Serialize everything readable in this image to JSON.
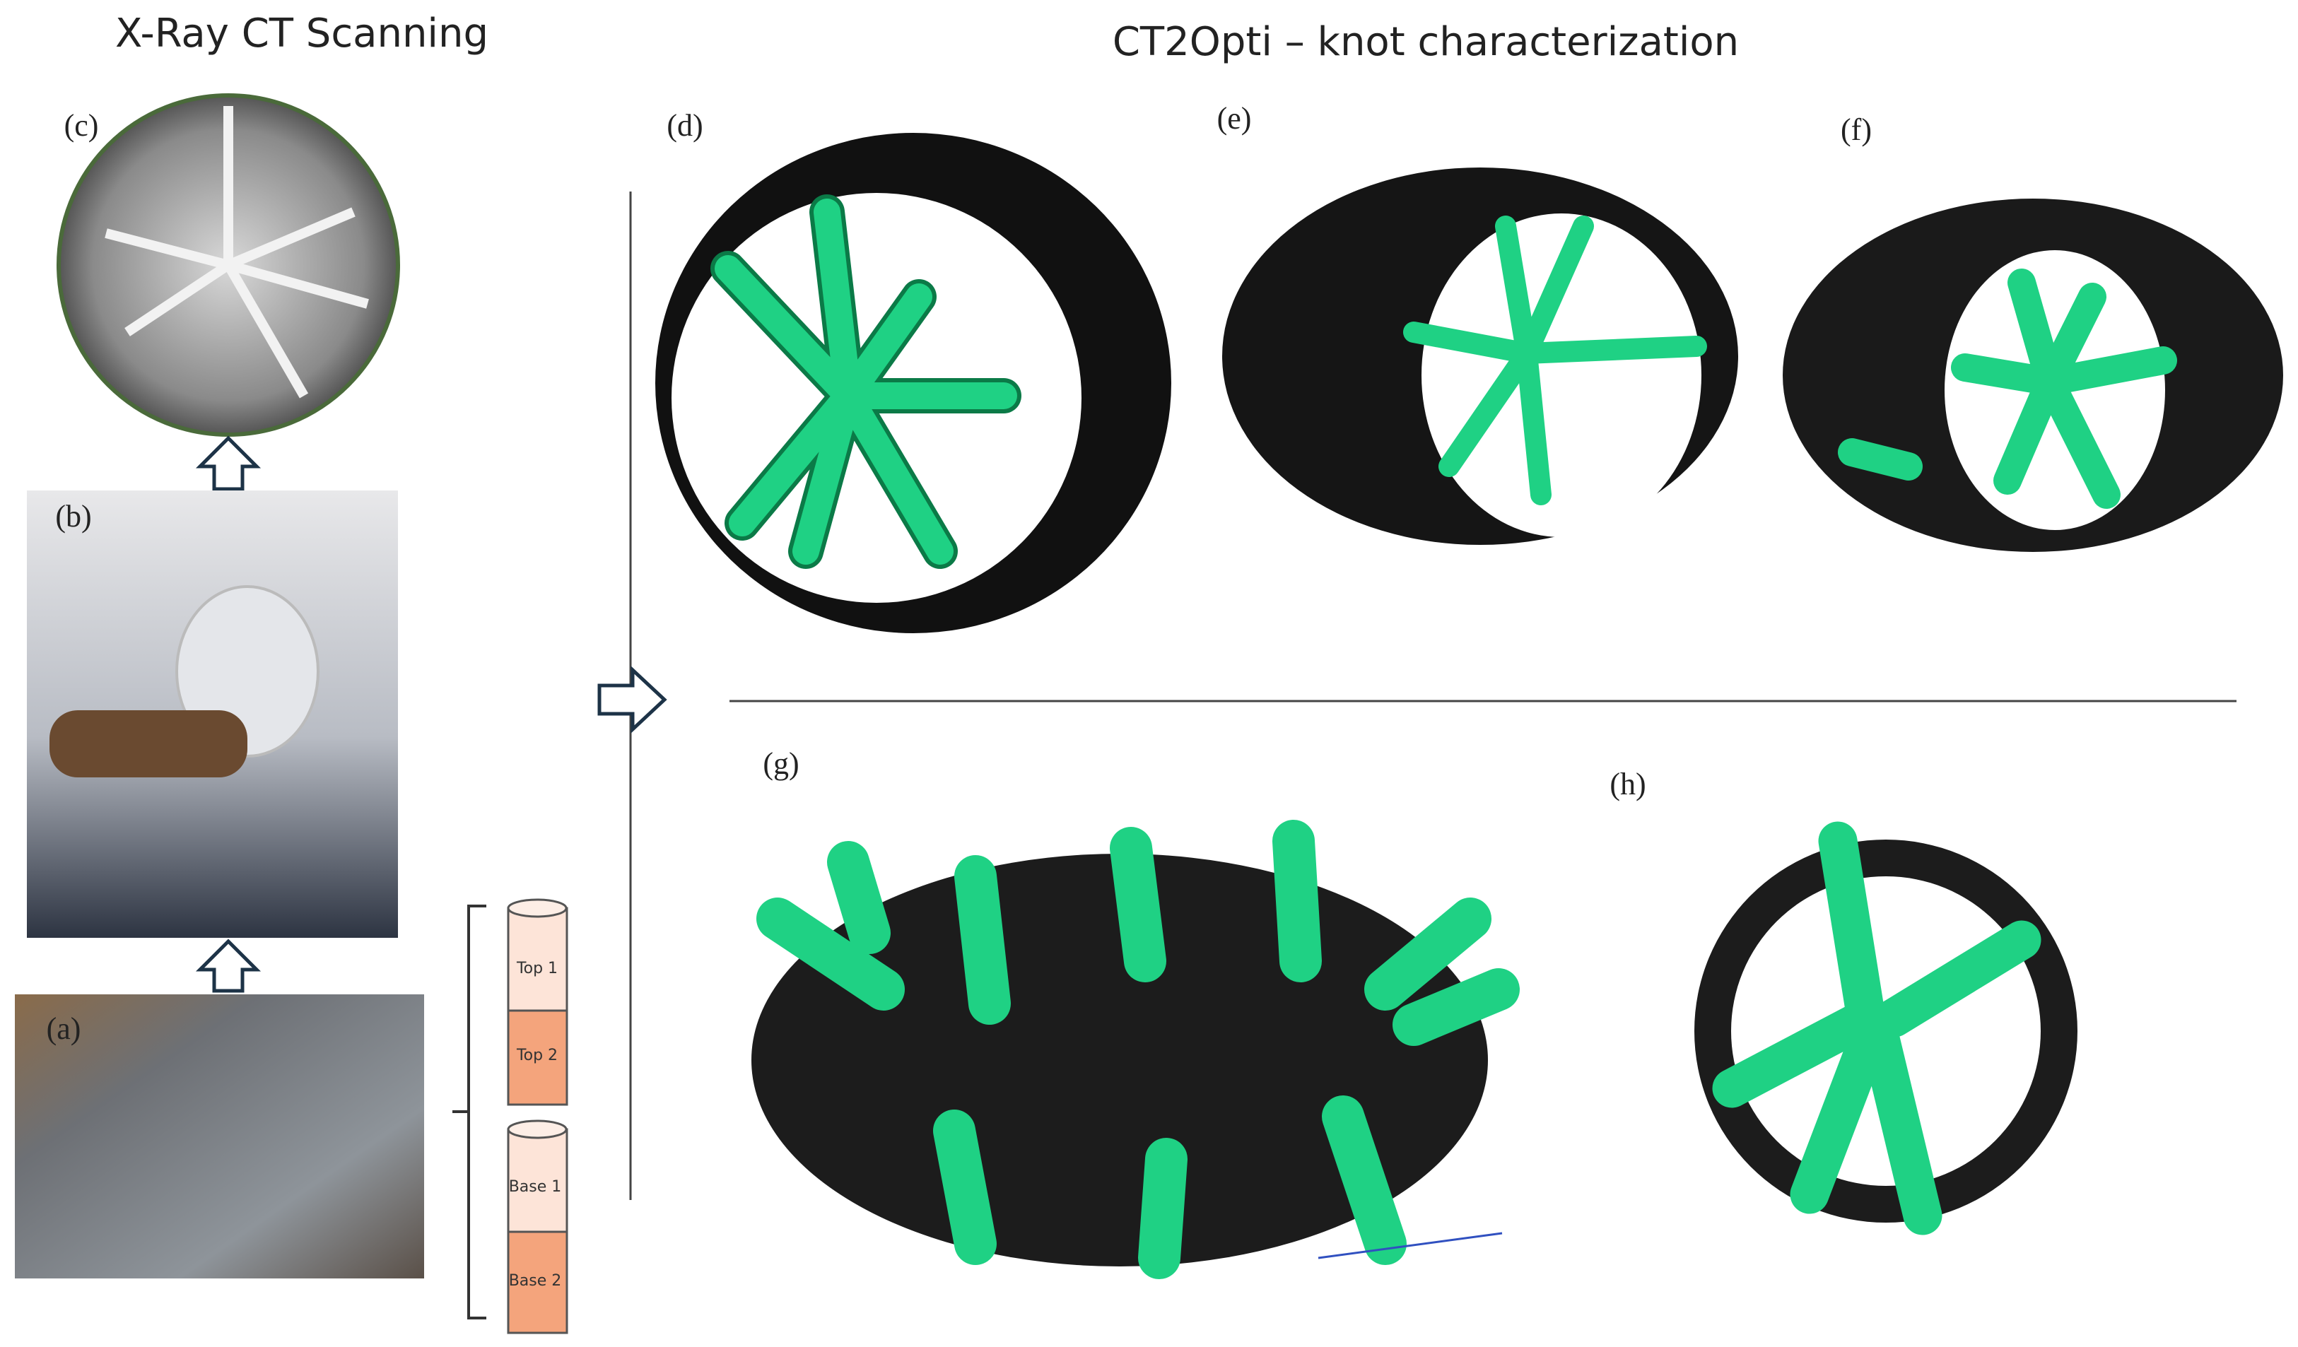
{
  "titles": {
    "left": "X-Ray CT Scanning",
    "right": "CT2Opti – knot characterization"
  },
  "panels": {
    "a": "(a)",
    "b": "(b)",
    "c": "(c)",
    "d": "(d)",
    "e": "(e)",
    "f": "(f)",
    "g": "(g)",
    "h": "(h)"
  },
  "cylinders": {
    "top": [
      "Top 1",
      "Top 2"
    ],
    "base": [
      "Base 1",
      "Base 2"
    ]
  }
}
